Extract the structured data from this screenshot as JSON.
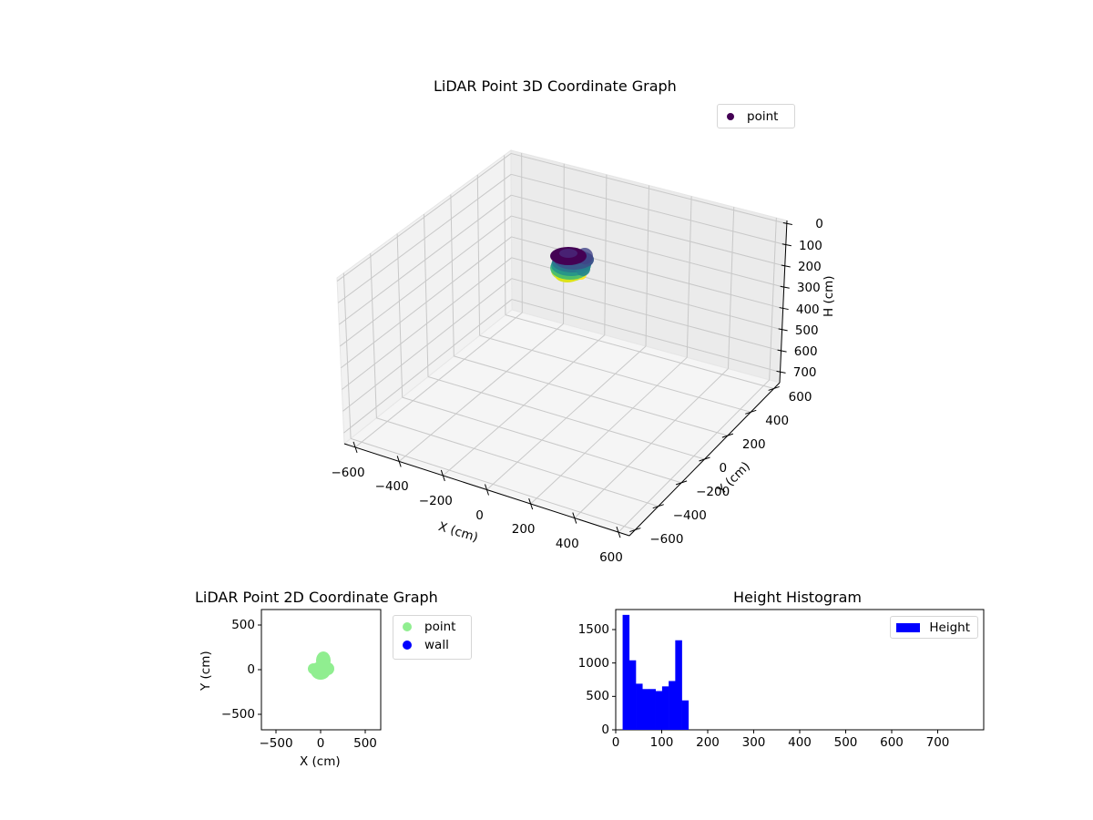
{
  "figure": {
    "chart3d": {
      "title": "LiDAR Point 3D Coordinate Graph",
      "legend": [
        {
          "label": "point",
          "color": "#440154"
        }
      ],
      "xlabel": "X (cm)",
      "ylabel": "Y (cm)",
      "zlabel": "H (cm)",
      "xticks": [
        "−600",
        "−400",
        "−200",
        "0",
        "200",
        "400",
        "600"
      ],
      "yticks": [
        "−600",
        "−400",
        "−200",
        "0",
        "200",
        "400",
        "600"
      ],
      "zticks": [
        "0",
        "100",
        "200",
        "300",
        "400",
        "500",
        "600",
        "700"
      ]
    },
    "chart2d": {
      "title": "LiDAR Point 2D Coordinate Graph",
      "xlabel": "X (cm)",
      "ylabel": "Y (cm)",
      "xticks": [
        "−500",
        "0",
        "500"
      ],
      "yticks": [
        "500",
        "0",
        "−500"
      ],
      "legend": [
        {
          "label": "point",
          "color": "#90ee90"
        },
        {
          "label": "wall",
          "color": "#0000ff"
        }
      ]
    },
    "histogram": {
      "title": "Height Histogram",
      "xticks": [
        "0",
        "100",
        "200",
        "300",
        "400",
        "500",
        "600",
        "700"
      ],
      "yticks": [
        "0",
        "500",
        "1000",
        "1500"
      ],
      "legend": [
        {
          "label": "Height",
          "color": "#0000ff"
        }
      ]
    }
  },
  "chart_data": [
    {
      "type": "scatter",
      "title": "LiDAR Point 3D Coordinate Graph",
      "xlabel": "X (cm)",
      "ylabel": "Y (cm)",
      "zlabel": "H (cm)",
      "xlim": [
        -650,
        650
      ],
      "ylim": [
        -650,
        650
      ],
      "zlim": [
        750,
        0
      ],
      "grid": true,
      "legend": [
        "point"
      ],
      "colormap": "viridis (by height)",
      "description": "Dense cylindrical cluster of points centered near x=0..50, y=0..100, heights ~15-160 cm",
      "cluster": {
        "x_range": [
          -80,
          110
        ],
        "y_range": [
          -80,
          150
        ],
        "h_range": [
          15,
          160
        ]
      }
    },
    {
      "type": "scatter",
      "title": "LiDAR Point 2D Coordinate Graph",
      "xlabel": "X (cm)",
      "ylabel": "Y (cm)",
      "xlim": [
        -670,
        670
      ],
      "ylim": [
        -670,
        670
      ],
      "series": [
        {
          "name": "point",
          "color": "#90ee90",
          "x_range": [
            -90,
            110
          ],
          "y_range": [
            -80,
            150
          ]
        },
        {
          "name": "wall",
          "color": "#0000ff",
          "count": 0
        }
      ]
    },
    {
      "type": "bar",
      "title": "Height Histogram",
      "xlabel": "",
      "ylabel": "",
      "xlim": [
        0,
        800
      ],
      "ylim": [
        0,
        1800
      ],
      "legend": [
        "Height"
      ],
      "bin_edges": [
        15,
        29.3,
        43.6,
        57.9,
        72.2,
        86.5,
        100.8,
        115.1,
        129.4,
        143.7,
        158
      ],
      "series": [
        {
          "name": "Height",
          "color": "#0000ff",
          "values": [
            1720,
            1040,
            690,
            610,
            610,
            580,
            650,
            730,
            1340,
            440
          ]
        }
      ]
    }
  ]
}
